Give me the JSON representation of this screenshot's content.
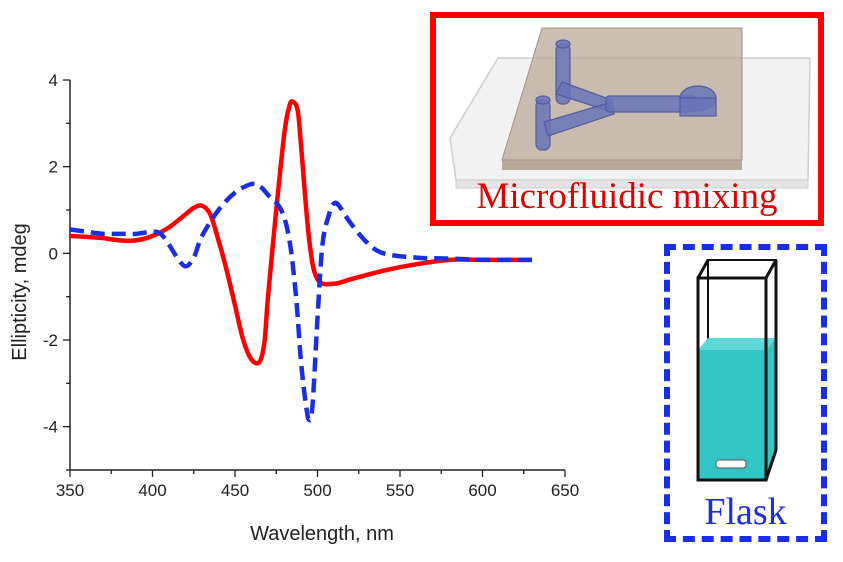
{
  "chart_data": {
    "type": "line",
    "xlabel": "Wavelength, nm",
    "ylabel": "Ellipticity, mdeg",
    "xlim": [
      350,
      650
    ],
    "ylim": [
      -5,
      4
    ],
    "xticks": [
      350,
      400,
      450,
      500,
      550,
      600,
      650
    ],
    "yticks": [
      -4,
      -2,
      0,
      2,
      4
    ],
    "grid": false,
    "series": [
      {
        "color": "#ff0000",
        "style": "solid",
        "x": [
          350,
          360,
          370,
          380,
          390,
          400,
          410,
          420,
          425,
          430,
          435,
          440,
          445,
          450,
          455,
          460,
          465,
          468,
          470,
          475,
          480,
          483,
          485,
          488,
          490,
          495,
          500,
          510,
          520,
          540,
          560,
          580,
          600,
          630
        ],
        "y": [
          0.4,
          0.38,
          0.35,
          0.3,
          0.3,
          0.4,
          0.6,
          0.9,
          1.05,
          1.1,
          0.9,
          0.3,
          -0.4,
          -1.2,
          -2.0,
          -2.45,
          -2.5,
          -2.0,
          -1.0,
          1.0,
          2.8,
          3.4,
          3.5,
          3.3,
          2.5,
          0.3,
          -0.6,
          -0.7,
          -0.6,
          -0.4,
          -0.25,
          -0.15,
          -0.15,
          -0.15
        ]
      },
      {
        "color": "#1a2ee6",
        "style": "dashed",
        "x": [
          350,
          360,
          370,
          380,
          390,
          400,
          405,
          410,
          415,
          420,
          425,
          430,
          440,
          450,
          460,
          465,
          470,
          478,
          483,
          487,
          490,
          493,
          495,
          497,
          500,
          503,
          507,
          510,
          513,
          520,
          530,
          540,
          560,
          580,
          600,
          630
        ],
        "y": [
          0.55,
          0.5,
          0.45,
          0.45,
          0.45,
          0.5,
          0.45,
          0.2,
          -0.1,
          -0.3,
          -0.1,
          0.4,
          1.0,
          1.4,
          1.6,
          1.55,
          1.35,
          1.0,
          0.3,
          -1.0,
          -2.5,
          -3.5,
          -3.85,
          -3.5,
          -1.5,
          0.2,
          0.9,
          1.15,
          1.1,
          0.7,
          0.25,
          0.0,
          -0.1,
          -0.12,
          -0.15,
          -0.15
        ]
      }
    ]
  },
  "insets": {
    "microfluidic_label": "Microfluidic mixing",
    "flask_label": "Flask"
  },
  "colors": {
    "microfluidic": "#ff0000",
    "flask": "#1a2ee6",
    "liquid": "#33c4c4",
    "chip": "#b9a89a",
    "channel": "#6a74b8"
  }
}
